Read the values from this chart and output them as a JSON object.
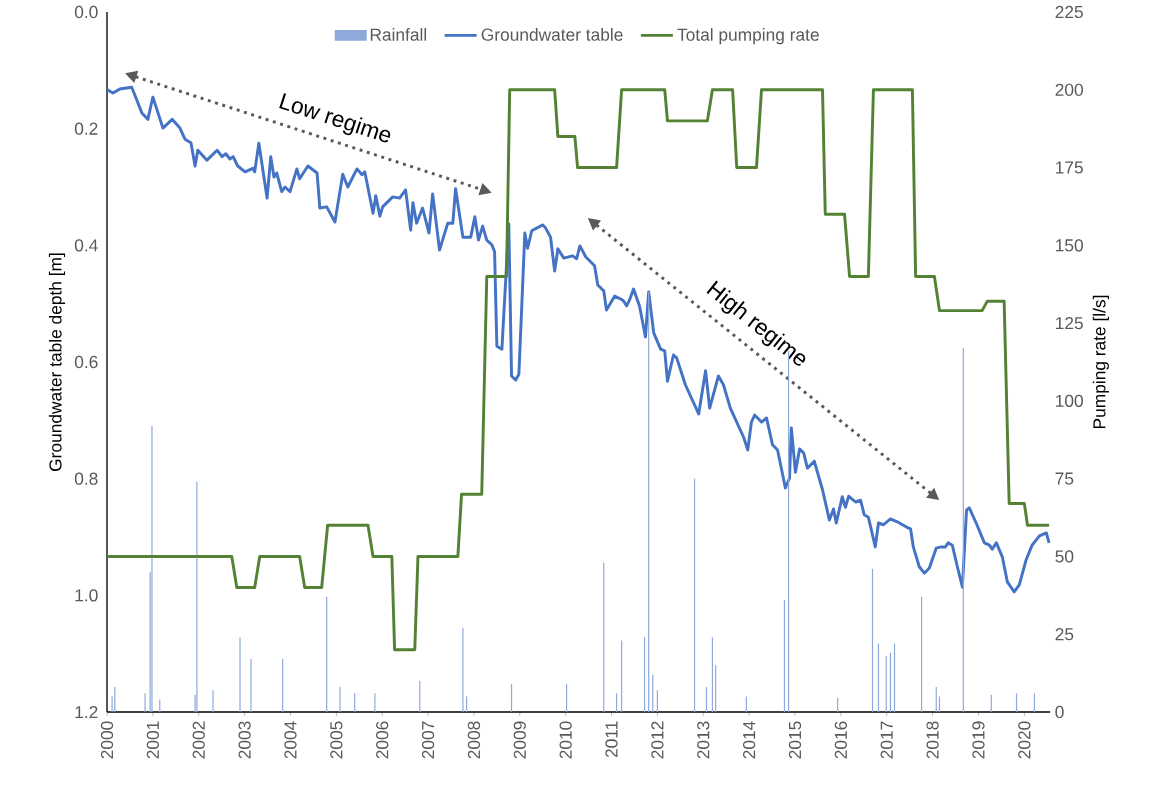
{
  "chart_data": {
    "type": "line",
    "ylabel": "Groundwater table depth [m]",
    "y2label": "Pumping rate [l/s]",
    "xlim": [
      2000,
      2020.56
    ],
    "xticks": [
      2000,
      2001,
      2002,
      2003,
      2004,
      2005,
      2006,
      2007,
      2008,
      2009,
      2010,
      2011,
      2012,
      2013,
      2014,
      2015,
      2016,
      2017,
      2018,
      2019,
      2020
    ],
    "ylim": [
      1.2,
      0
    ],
    "yticks": [
      {
        "value": 0,
        "label": "0.0"
      },
      {
        "value": 0.2,
        "label": "0.2"
      },
      {
        "value": 0.4,
        "label": "0.4"
      },
      {
        "value": 0.6,
        "label": "0.6"
      },
      {
        "value": 0.8,
        "label": "0.8"
      },
      {
        "value": 1.0,
        "label": "1.0"
      },
      {
        "value": 1.2,
        "label": "1.2"
      }
    ],
    "y2lim": [
      0,
      225
    ],
    "y2ticks": [
      0,
      25,
      50,
      75,
      100,
      125,
      150,
      175,
      200,
      225
    ],
    "legend": "top",
    "grid": false,
    "annotations": [
      "Low regime",
      "High regime"
    ],
    "series": [
      {
        "name": "Rainfall",
        "type": "bar",
        "axis": "y2",
        "color": "#8eaadb",
        "x": [
          2000.11,
          2000.17,
          2000.83,
          2000.94,
          2000.98,
          2001.15,
          2001.92,
          2001.96,
          2002.31,
          2002.9,
          2003.14,
          2003.83,
          2004.79,
          2005.08,
          2005.4,
          2005.84,
          2006.82,
          2007.76,
          2007.84,
          2008.82,
          2010.02,
          2010.83,
          2011.11,
          2011.22,
          2011.72,
          2011.81,
          2011.9,
          2012.0,
          2012.81,
          2013.07,
          2013.2,
          2013.27,
          2013.94,
          2014.77,
          2014.86,
          2015.93,
          2016.69,
          2016.82,
          2016.99,
          2017.08,
          2017.17,
          2017.76,
          2018.08,
          2018.15,
          2018.67,
          2019.28,
          2019.83,
          2020.22
        ],
        "values": [
          5,
          8,
          6,
          45,
          92,
          4,
          5.5,
          74,
          7,
          24,
          17,
          17,
          37,
          8,
          6,
          6,
          10,
          27,
          5,
          9,
          9,
          48,
          6,
          23,
          24,
          135,
          12,
          7,
          75,
          8,
          24,
          15,
          5,
          36,
          116,
          4.5,
          46,
          22,
          18,
          19,
          22,
          37,
          8,
          5,
          117,
          5.5,
          6,
          6
        ]
      },
      {
        "name": "Groundwater table",
        "color": "#4472c4",
        "x": [
          2000.0,
          2000.13,
          2000.28,
          2000.54,
          2000.76,
          2000.89,
          2001.0,
          2001.22,
          2001.42,
          2001.59,
          2001.7,
          2001.83,
          2001.92,
          2001.98,
          2002.18,
          2002.4,
          2002.51,
          2002.59,
          2002.68,
          2002.75,
          2002.85,
          2003.01,
          2003.18,
          2003.22,
          2003.31,
          2003.49,
          2003.57,
          2003.64,
          2003.7,
          2003.81,
          2003.88,
          2003.99,
          2004.14,
          2004.2,
          2004.38,
          2004.58,
          2004.64,
          2004.79,
          2004.97,
          2005.14,
          2005.25,
          2005.45,
          2005.56,
          2005.62,
          2005.8,
          2005.86,
          2005.95,
          2006.01,
          2006.23,
          2006.38,
          2006.51,
          2006.62,
          2006.67,
          2006.75,
          2006.88,
          2007.02,
          2007.1,
          2007.25,
          2007.43,
          2007.54,
          2007.6,
          2007.76,
          2007.93,
          2008.02,
          2008.1,
          2008.19,
          2008.28,
          2008.39,
          2008.45,
          2008.5,
          2008.61,
          2008.76,
          2008.82,
          2008.91,
          2008.98,
          2009.11,
          2009.17,
          2009.26,
          2009.5,
          2009.56,
          2009.67,
          2009.76,
          2009.83,
          2009.96,
          2010.15,
          2010.24,
          2010.31,
          2010.44,
          2010.63,
          2010.7,
          2010.83,
          2010.89,
          2011.07,
          2011.2,
          2011.26,
          2011.33,
          2011.39,
          2011.48,
          2011.61,
          2011.74,
          2011.81,
          2011.92,
          2012.07,
          2012.16,
          2012.22,
          2012.35,
          2012.42,
          2012.61,
          2012.9,
          2013.05,
          2013.14,
          2013.33,
          2013.44,
          2013.59,
          2013.88,
          2013.97,
          2014.05,
          2014.12,
          2014.27,
          2014.38,
          2014.51,
          2014.62,
          2014.79,
          2014.88,
          2014.92,
          2015.01,
          2015.1,
          2015.19,
          2015.27,
          2015.42,
          2015.6,
          2015.75,
          2015.84,
          2015.9,
          2016.03,
          2016.1,
          2016.17,
          2016.32,
          2016.43,
          2016.51,
          2016.6,
          2016.75,
          2016.82,
          2016.93,
          2017.08,
          2017.23,
          2017.43,
          2017.52,
          2017.58,
          2017.71,
          2017.82,
          2017.93,
          2018.08,
          2018.19,
          2018.28,
          2018.34,
          2018.43,
          2018.54,
          2018.65,
          2018.74,
          2018.8,
          2018.95,
          2019.13,
          2019.24,
          2019.3,
          2019.39,
          2019.52,
          2019.63,
          2019.78,
          2019.89,
          2020.04,
          2020.17,
          2020.33,
          2020.48,
          2020.54
        ],
        "values": [
          0.133,
          0.139,
          0.132,
          0.129,
          0.173,
          0.184,
          0.146,
          0.199,
          0.184,
          0.199,
          0.218,
          0.224,
          0.264,
          0.237,
          0.254,
          0.237,
          0.248,
          0.243,
          0.252,
          0.248,
          0.264,
          0.274,
          0.268,
          0.274,
          0.225,
          0.319,
          0.248,
          0.283,
          0.276,
          0.308,
          0.3,
          0.308,
          0.269,
          0.286,
          0.264,
          0.276,
          0.336,
          0.334,
          0.36,
          0.278,
          0.3,
          0.269,
          0.279,
          0.274,
          0.345,
          0.315,
          0.35,
          0.334,
          0.317,
          0.319,
          0.305,
          0.374,
          0.327,
          0.362,
          0.336,
          0.379,
          0.312,
          0.408,
          0.362,
          0.362,
          0.303,
          0.386,
          0.386,
          0.351,
          0.391,
          0.367,
          0.391,
          0.399,
          0.411,
          0.573,
          0.578,
          0.363,
          0.624,
          0.631,
          0.621,
          0.379,
          0.405,
          0.375,
          0.365,
          0.37,
          0.386,
          0.444,
          0.406,
          0.422,
          0.418,
          0.423,
          0.401,
          0.42,
          0.435,
          0.468,
          0.478,
          0.511,
          0.487,
          0.492,
          0.495,
          0.504,
          0.494,
          0.475,
          0.504,
          0.557,
          0.48,
          0.55,
          0.578,
          0.581,
          0.633,
          0.588,
          0.593,
          0.639,
          0.689,
          0.615,
          0.679,
          0.624,
          0.639,
          0.679,
          0.729,
          0.751,
          0.703,
          0.691,
          0.703,
          0.696,
          0.742,
          0.751,
          0.816,
          0.799,
          0.713,
          0.789,
          0.749,
          0.756,
          0.782,
          0.77,
          0.819,
          0.871,
          0.852,
          0.876,
          0.831,
          0.849,
          0.83,
          0.84,
          0.837,
          0.862,
          0.866,
          0.917,
          0.876,
          0.879,
          0.869,
          0.874,
          0.883,
          0.886,
          0.917,
          0.951,
          0.962,
          0.953,
          0.919,
          0.917,
          0.917,
          0.91,
          0.914,
          0.951,
          0.986,
          0.854,
          0.85,
          0.876,
          0.91,
          0.914,
          0.921,
          0.91,
          0.934,
          0.977,
          0.994,
          0.982,
          0.939,
          0.914,
          0.898,
          0.893,
          0.91
        ]
      },
      {
        "name": "Total pumping rate",
        "axis": "y2",
        "color": "#548235",
        "x": [
          2000.0,
          2002.72,
          2002.83,
          2003.22,
          2003.33,
          2004.2,
          2004.31,
          2004.68,
          2004.81,
          2005.69,
          2005.8,
          2006.21,
          2006.27,
          2006.71,
          2006.78,
          2007.65,
          2007.73,
          2008.17,
          2008.28,
          2008.71,
          2008.78,
          2009.76,
          2009.83,
          2010.2,
          2010.26,
          2011.11,
          2011.22,
          2012.16,
          2012.22,
          2013.09,
          2013.2,
          2013.64,
          2013.73,
          2014.16,
          2014.27,
          2015.6,
          2015.66,
          2016.08,
          2016.19,
          2016.6,
          2016.71,
          2017.56,
          2017.63,
          2018.04,
          2018.15,
          2019.08,
          2019.19,
          2019.56,
          2019.67,
          2020.0,
          2020.07,
          2020.54
        ],
        "values": [
          50,
          50,
          40,
          40,
          50,
          50,
          40,
          40,
          60,
          60,
          50,
          50,
          20,
          20,
          50,
          50,
          70,
          70,
          140,
          140,
          200,
          200,
          185,
          185,
          175,
          175,
          200,
          200,
          190,
          190,
          200,
          200,
          175,
          175,
          200,
          200,
          160,
          160,
          140,
          140,
          200,
          200,
          140,
          140,
          129,
          129,
          132,
          132,
          67,
          67,
          60,
          60
        ]
      }
    ]
  }
}
